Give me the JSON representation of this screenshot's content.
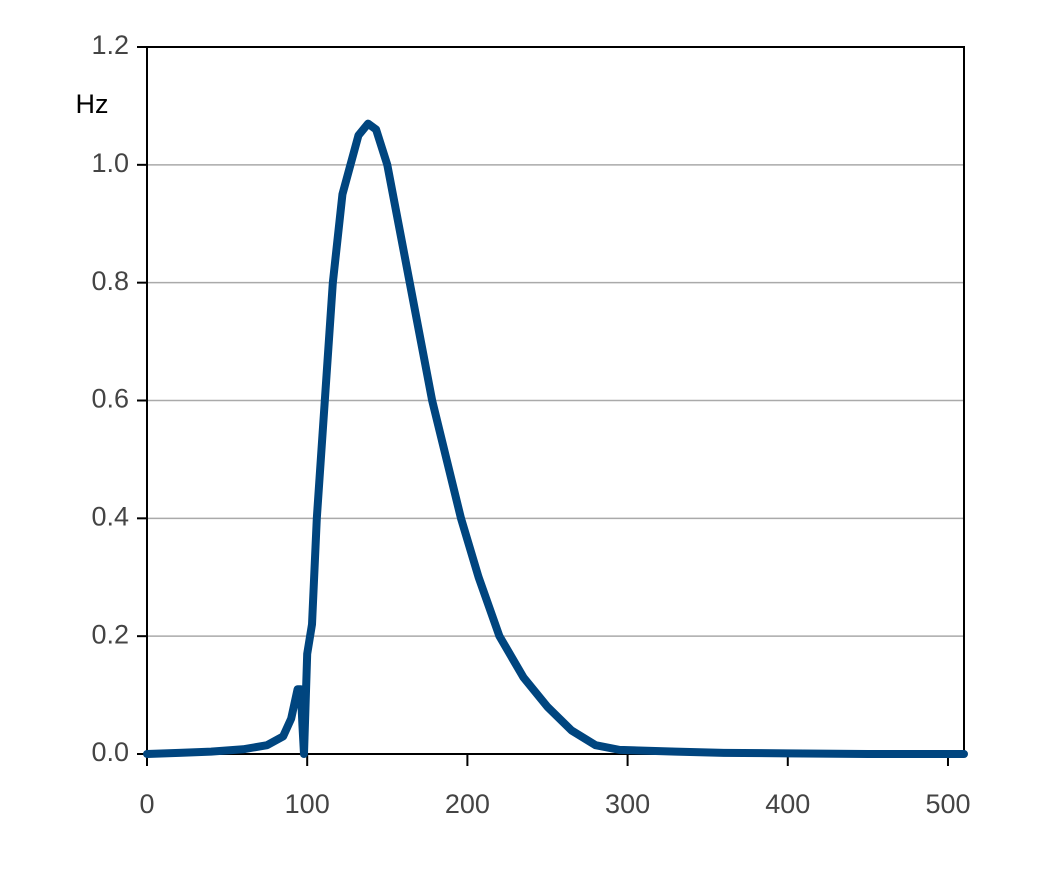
{
  "chart_data": {
    "type": "line",
    "y_label": "Hz",
    "x": [
      0,
      20,
      40,
      60,
      75,
      85,
      90,
      94,
      96,
      97,
      98,
      100,
      103,
      106,
      111,
      116,
      122,
      127,
      132,
      138,
      143,
      150,
      157,
      164,
      171,
      178,
      187,
      196,
      207,
      220,
      235,
      250,
      265,
      280,
      295,
      330,
      360,
      400,
      450,
      510
    ],
    "series": [
      {
        "color": "#00457f",
        "values": [
          0.0,
          0.002,
          0.004,
          0.008,
          0.015,
          0.03,
          0.06,
          0.11,
          0.11,
          0.05,
          0.0,
          0.17,
          0.22,
          0.4,
          0.6,
          0.8,
          0.95,
          1.0,
          1.05,
          1.07,
          1.06,
          1.0,
          0.9,
          0.8,
          0.7,
          0.6,
          0.5,
          0.4,
          0.3,
          0.2,
          0.13,
          0.08,
          0.04,
          0.015,
          0.007,
          0.004,
          0.002,
          0.001,
          0.0,
          0.0
        ]
      }
    ],
    "xlim": [
      0,
      510
    ],
    "xticks": [
      0,
      100,
      200,
      300,
      400,
      500
    ],
    "ylim": [
      0,
      1.2
    ],
    "yticks": [
      {
        "value": 0,
        "label": "0.0"
      },
      0.2,
      0.4,
      0.6,
      0.8,
      {
        "value": 1,
        "label": "1.0"
      },
      1.2
    ],
    "grid": true
  }
}
